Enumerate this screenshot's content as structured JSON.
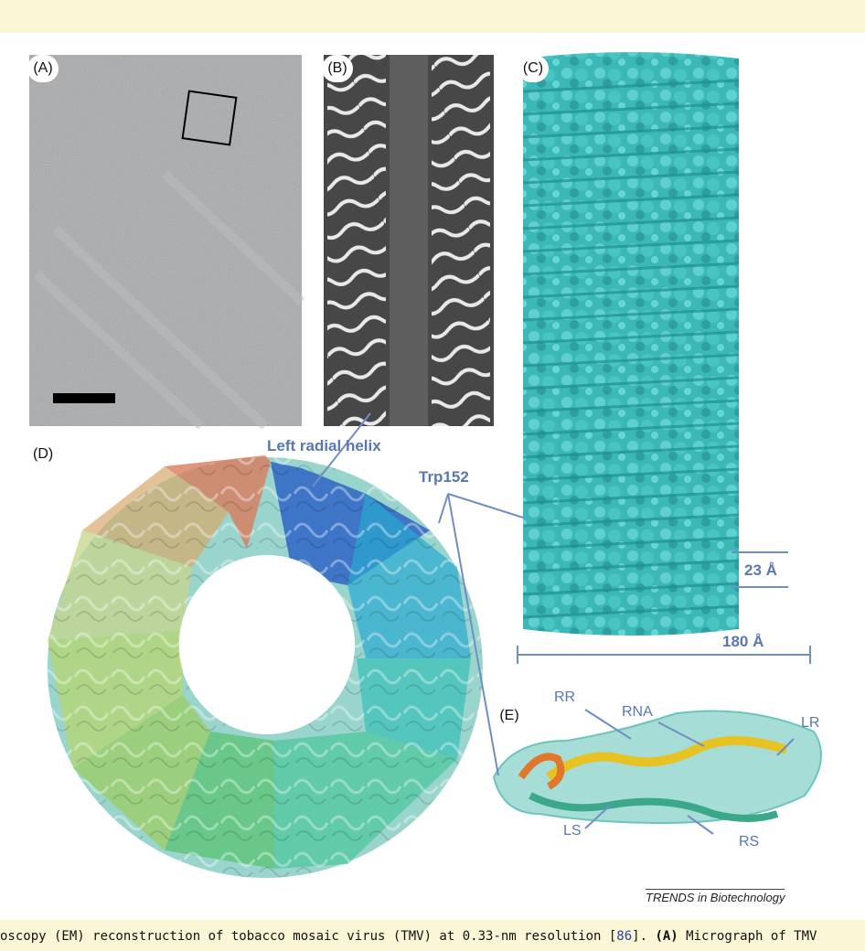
{
  "figure": {
    "panels": {
      "A": {
        "label": "(A)"
      },
      "B": {
        "label": "(B)"
      },
      "C": {
        "label": "(C)"
      },
      "D": {
        "label": "(D)"
      },
      "E": {
        "label": "(E)"
      }
    },
    "annotations": {
      "left_radial_helix": "Left radial helix",
      "trp152": "Trp152",
      "rise": "23 Å",
      "diameter": "180 Å",
      "rr": "RR",
      "rna": "RNA",
      "lr": "LR",
      "ls": "LS",
      "rs": "RS"
    },
    "credit": "TRENDS in Biotechnology",
    "colors": {
      "annotation": "#5877b5",
      "band": "#fbf7d6",
      "teal": "#3fbfbf"
    }
  },
  "caption": {
    "pre": "oscopy (EM) reconstruction of tobacco mosaic virus (TMV) at 0.33-nm resolution [",
    "ref": "86",
    "mid": "]. ",
    "bold": "(A)",
    "post": " Micrograph of TMV"
  }
}
